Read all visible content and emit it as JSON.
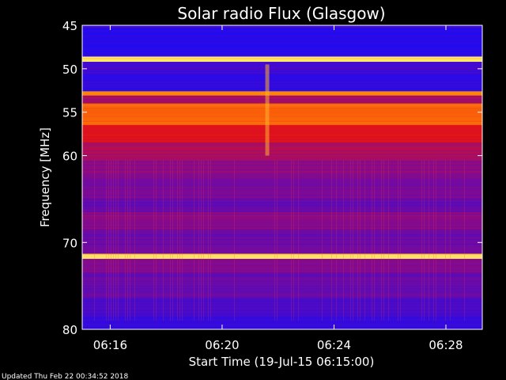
{
  "chart_data": {
    "type": "heatmap",
    "title": "Solar radio Flux (Glasgow)",
    "xlabel": "Start Time (19-Jul-15 06:15:00)",
    "ylabel": "Frequency [MHz]",
    "x_range_minutes": [
      0,
      14.3
    ],
    "y_range_mhz": [
      45,
      80
    ],
    "y_ticks": [
      "45",
      "50",
      "55",
      "60",
      "70",
      "80"
    ],
    "y_tick_values": [
      45,
      50,
      55,
      60,
      70,
      80
    ],
    "x_ticks": [
      "06:16",
      "06:20",
      "06:24",
      "06:28"
    ],
    "x_tick_minutes": [
      1,
      5,
      9,
      13
    ],
    "bands": [
      {
        "f0": 45.0,
        "f1": 45.4,
        "level": 0.1
      },
      {
        "f0": 45.4,
        "f1": 48.6,
        "level": 0.05
      },
      {
        "f0": 48.6,
        "f1": 49.2,
        "level": 0.97
      },
      {
        "f0": 49.2,
        "f1": 50.6,
        "level": 0.12
      },
      {
        "f0": 50.6,
        "f1": 52.6,
        "level": 0.08
      },
      {
        "f0": 52.6,
        "f1": 53.1,
        "level": 0.85
      },
      {
        "f0": 53.1,
        "f1": 54.0,
        "level": 0.4
      },
      {
        "f0": 54.0,
        "f1": 56.5,
        "level": 0.78
      },
      {
        "f0": 56.5,
        "f1": 58.5,
        "level": 0.55
      },
      {
        "f0": 58.5,
        "f1": 60.5,
        "level": 0.42
      },
      {
        "f0": 60.5,
        "f1": 62.0,
        "level": 0.33
      },
      {
        "f0": 62.0,
        "f1": 65.0,
        "level": 0.28
      },
      {
        "f0": 65.0,
        "f1": 66.5,
        "level": 0.22
      },
      {
        "f0": 66.5,
        "f1": 68.5,
        "level": 0.32
      },
      {
        "f0": 68.5,
        "f1": 71.3,
        "level": 0.24
      },
      {
        "f0": 71.3,
        "f1": 71.9,
        "level": 0.95
      },
      {
        "f0": 71.9,
        "f1": 73.5,
        "level": 0.3
      },
      {
        "f0": 73.5,
        "f1": 76.5,
        "level": 0.22
      },
      {
        "f0": 76.5,
        "f1": 78.5,
        "level": 0.15
      },
      {
        "f0": 78.5,
        "f1": 80.0,
        "level": 0.1
      }
    ],
    "burst": {
      "minute": 6.6,
      "f0": 49.5,
      "f1": 60.0
    }
  },
  "footer": "Updated Thu Feb 22 00:34:52 2018",
  "colors": {
    "low": "#1010ff",
    "mid": "#cc0000",
    "high": "#ffff80",
    "bg": "#000000"
  }
}
